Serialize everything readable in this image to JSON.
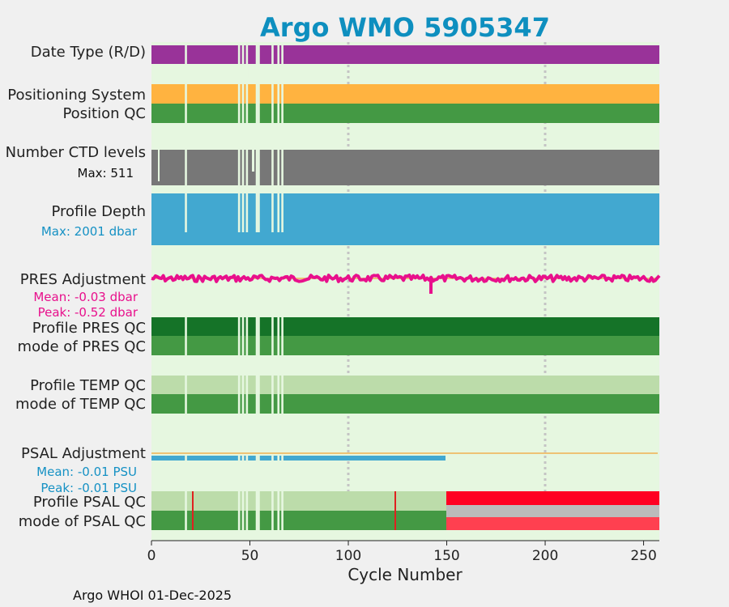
{
  "chart_data": {
    "type": "bar",
    "title": "Argo WMO 5905347",
    "xlabel": "Cycle Number",
    "xlim": [
      0,
      258
    ],
    "xticks": [
      "0",
      "50",
      "100",
      "150",
      "200",
      "250"
    ],
    "gridlines_at": [
      100,
      200
    ],
    "footer": "Argo WHOI 01-Dec-2025",
    "missing_cycles": [
      17,
      44,
      46,
      48,
      53,
      54,
      61,
      64,
      66
    ],
    "row_labels": [
      {
        "key": "date_type",
        "text": "Date Type (R/D)"
      },
      {
        "key": "positioning_system",
        "text": "Positioning System"
      },
      {
        "key": "position_qc",
        "text": "Position QC"
      },
      {
        "key": "n_levels",
        "text": "Number CTD levels"
      },
      {
        "key": "profile_depth",
        "text": "Profile Depth"
      },
      {
        "key": "pres_adjustment",
        "text": "PRES Adjustment"
      },
      {
        "key": "profile_pres_qc",
        "text": "Profile PRES QC"
      },
      {
        "key": "mode_pres_qc",
        "text": "mode of PRES QC"
      },
      {
        "key": "profile_temp_qc",
        "text": "Profile TEMP QC"
      },
      {
        "key": "mode_temp_qc",
        "text": "mode of TEMP QC"
      },
      {
        "key": "psal_adjustment",
        "text": "PSAL Adjustment"
      },
      {
        "key": "profile_psal_qc",
        "text": "Profile PSAL QC"
      },
      {
        "key": "mode_psal_qc",
        "text": "mode of PSAL QC"
      }
    ],
    "annotations": {
      "n_levels_max": "Max: 511",
      "depth_max": "Max: 2001 dbar",
      "pres_mean": "Mean: -0.03 dbar",
      "pres_peak": "Peak: -0.52 dbar",
      "psal_mean": "Mean: -0.01 PSU",
      "psal_peak": "Peak: -0.01 PSU"
    },
    "series": [
      {
        "name": "Date Type (R/D)",
        "color": "#993399",
        "cycles": [
          0,
          258
        ]
      },
      {
        "name": "Positioning System",
        "color": "#ffb340",
        "cycles": [
          0,
          258
        ]
      },
      {
        "name": "Position QC",
        "color": "#449944",
        "cycles": [
          0,
          258
        ]
      },
      {
        "name": "Number CTD levels",
        "color": "#777777",
        "max": 511,
        "low_cycles": [
          4,
          51
        ]
      },
      {
        "name": "Profile Depth",
        "color": "#42a8d0",
        "max_dbar": 2001
      },
      {
        "name": "PRES Adjustment",
        "color": "#e8108c",
        "mean_dbar": -0.03,
        "peak_dbar": -0.52,
        "dip_cycle": 142
      },
      {
        "name": "Profile PRES QC",
        "color": "#157328",
        "cycles": [
          0,
          258
        ]
      },
      {
        "name": "mode of PRES QC",
        "color": "#449944",
        "cycles": [
          0,
          258
        ]
      },
      {
        "name": "Profile TEMP QC",
        "color": "#bcdcaa",
        "cycles": [
          0,
          258
        ]
      },
      {
        "name": "mode of TEMP QC",
        "color": "#449944",
        "cycles": [
          0,
          258
        ]
      },
      {
        "name": "PSAL Adjustment",
        "color": "#42a8d0",
        "mean_psu": -0.01,
        "peak_psu": -0.01,
        "adjusted_cycles": [
          0,
          150
        ]
      },
      {
        "name": "Profile PSAL QC",
        "segments": [
          {
            "from": 0,
            "to": 150,
            "color": "#bcdcaa"
          },
          {
            "from": 150,
            "to": 258,
            "color": "#ff0022"
          }
        ],
        "flag_cycles": [
          21,
          124
        ],
        "flag_color": "#e02020"
      },
      {
        "name": "mode of PSAL QC",
        "segments": [
          {
            "from": 0,
            "to": 150,
            "color": "#449944"
          },
          {
            "from": 150,
            "to": 258,
            "color": "#ff4050"
          }
        ],
        "mid_band": {
          "from": 150,
          "to": 258,
          "color": "#bbbbbb"
        }
      }
    ],
    "colors": {
      "background": "#e6f7e0",
      "title": "#0e8fbf",
      "axis_text": "#222222",
      "grid": "#c4c4c4",
      "zero_line": "#f0b050"
    }
  }
}
